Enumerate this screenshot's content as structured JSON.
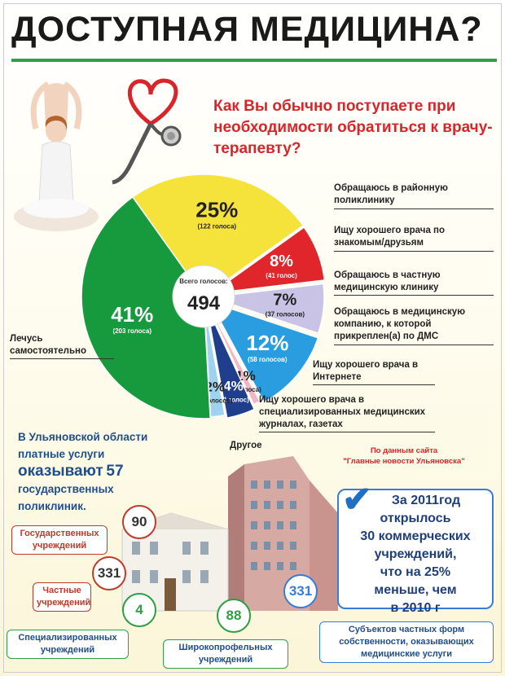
{
  "title": "ДОСТУПНАЯ МЕДИЦИНА?",
  "question": "Как Вы обычно поступаете при необходимости обратиться к врачу-терапевту?",
  "chart_data": {
    "type": "pie",
    "total_label": "Всего голосов:",
    "total": "494",
    "slices": [
      {
        "percent": "25%",
        "votes": "(122 голоса)",
        "value": 25,
        "label": "Обращаюсь в районную поликлинику",
        "color": "#f5e23a"
      },
      {
        "percent": "8%",
        "votes": "(41 голос)",
        "value": 8,
        "label": "Ищу хорошего врача по знакомым/друзьям",
        "color": "#e0262b"
      },
      {
        "percent": "7%",
        "votes": "(37 голосов)",
        "value": 7,
        "label": "Обращаюсь в частную медицинскую клинику",
        "color": "#c9c4e6"
      },
      {
        "percent": "12%",
        "votes": "(58 голосов)",
        "value": 12,
        "label": "Обращаюсь в медицинскую компанию, к которой прикреплен(а) по ДМС",
        "color": "#2a9de0"
      },
      {
        "percent": "1%",
        "votes": "(4 голоса)",
        "value": 1,
        "label": "Ищу хорошего врача в Интернете",
        "color": "#f3b6c4"
      },
      {
        "percent": "4%",
        "votes": "(21 голос)",
        "value": 4,
        "label": "Ищу хорошего врача в специализированных медицинских журналах, газетах",
        "color": "#1f3f8c"
      },
      {
        "percent": "2%",
        "votes": "(8 голосов)",
        "value": 2,
        "label": "Другое",
        "color": "#9fd2ee"
      },
      {
        "percent": "41%",
        "votes": "(203 голоса)",
        "value": 41,
        "label": "Лечусь самостоятельно",
        "color": "#179a3d"
      }
    ]
  },
  "region": {
    "line1": "В Ульяновской области",
    "line2": "платные услуги",
    "line3": "оказывают",
    "number": "57",
    "line4": "государственных",
    "line5": "поликлиник."
  },
  "source": {
    "line1": "По данным сайта",
    "line2": "\"Главные новости Ульяновска\""
  },
  "info": {
    "lines": [
      "За 2011год",
      "открылось",
      "30 коммерческих",
      "учреждений,",
      "что на 25%",
      "меньше, чем",
      "в 2010 г"
    ]
  },
  "counters": [
    {
      "value": "90",
      "label": "Государственных учреждений",
      "color": "#c0392b"
    },
    {
      "value": "331",
      "label": "Частные учреждений",
      "color": "#c0392b"
    },
    {
      "value": "4",
      "label": "Специализированных учреждений",
      "color": "#2f9e44"
    },
    {
      "value": "88",
      "label": "Широкопрофельных учреждений",
      "color": "#2f9e44"
    },
    {
      "value": "331",
      "label": "Субъектов частных форм собственности, оказывающих медицинские услуги",
      "color": "#3a7bd5"
    }
  ]
}
